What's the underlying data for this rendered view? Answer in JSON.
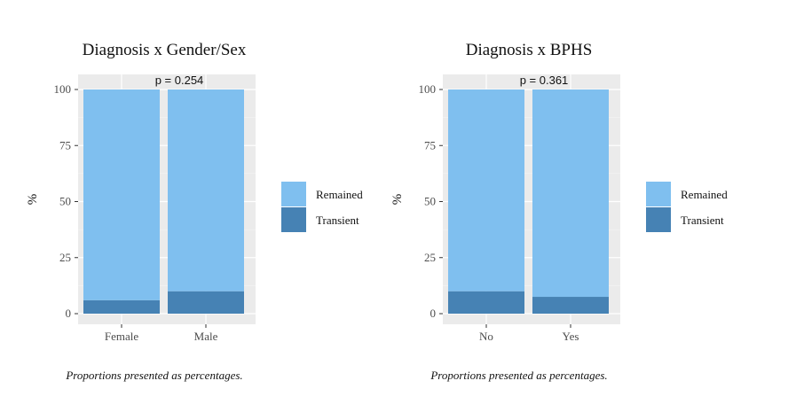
{
  "chart_data": [
    {
      "type": "bar",
      "stacked": true,
      "title": "Diagnosis x Gender/Sex",
      "annotation": "p = 0.254",
      "ylabel": "%",
      "xlabel": "",
      "ylim": [
        0,
        100
      ],
      "yticks": [
        0,
        25,
        50,
        75,
        100
      ],
      "categories": [
        "Female",
        "Male"
      ],
      "series": [
        {
          "name": "Transient",
          "values": [
            6,
            10
          ],
          "color": "#4682b4"
        },
        {
          "name": "Remained",
          "values": [
            94,
            90
          ],
          "color": "#7fbfef"
        }
      ],
      "legend_order": [
        "Remained",
        "Transient"
      ],
      "legend_position": "right",
      "grid": true,
      "caption": "Proportions presented as percentages."
    },
    {
      "type": "bar",
      "stacked": true,
      "title": "Diagnosis x BPHS",
      "annotation": "p = 0.361",
      "ylabel": "%",
      "xlabel": "",
      "ylim": [
        0,
        100
      ],
      "yticks": [
        0,
        25,
        50,
        75,
        100
      ],
      "categories": [
        "No",
        "Yes"
      ],
      "series": [
        {
          "name": "Transient",
          "values": [
            10,
            7.5
          ],
          "color": "#4682b4"
        },
        {
          "name": "Remained",
          "values": [
            90,
            92.5
          ],
          "color": "#7fbfef"
        }
      ],
      "legend_order": [
        "Remained",
        "Transient"
      ],
      "legend_position": "right",
      "grid": true,
      "caption": "Proportions presented as percentages."
    }
  ]
}
